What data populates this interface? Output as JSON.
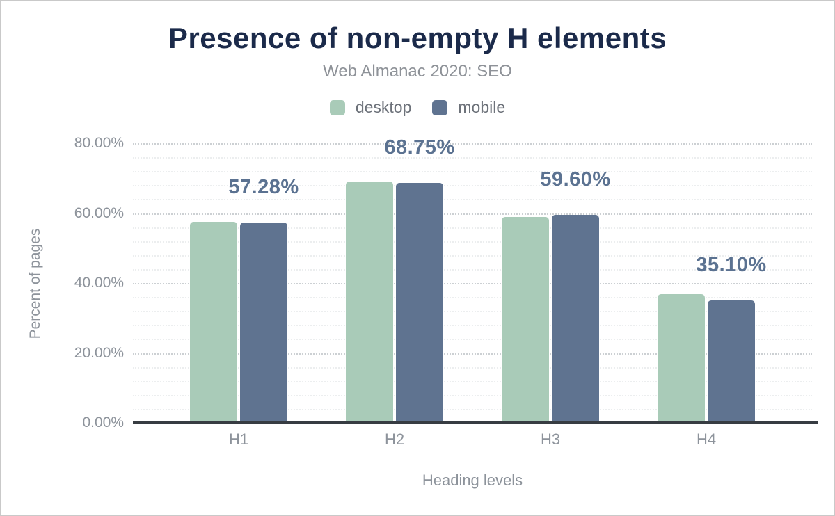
{
  "chart_data": {
    "type": "bar",
    "title": "Presence of non-empty H elements",
    "subtitle": "Web Almanac 2020: SEO",
    "categories": [
      "H1",
      "H2",
      "H3",
      "H4"
    ],
    "series": [
      {
        "name": "desktop",
        "color": "#a9cbb8",
        "values": [
          57.5,
          69.0,
          59.0,
          36.8
        ]
      },
      {
        "name": "mobile",
        "color": "#5f7390",
        "values": [
          57.28,
          68.75,
          59.6,
          35.1
        ]
      }
    ],
    "bar_labels": [
      "57.28%",
      "68.75%",
      "59.60%",
      "35.10%"
    ],
    "bar_labels_series": "mobile",
    "xlabel": "Heading levels",
    "ylabel": "Percent of pages",
    "ylim": [
      0,
      80
    ],
    "ytick_values": [
      0,
      20,
      40,
      60,
      80
    ],
    "ytick_labels": [
      "0.00%",
      "20.00%",
      "40.00%",
      "60.00%",
      "80.00%"
    ],
    "minor_grid_step": 4,
    "major_grid_step": 20,
    "grid": true,
    "legend_position": "top"
  },
  "colors": {
    "title": "#1b2a4a",
    "subtitle": "#8e9298",
    "axis_text": "#8d939b",
    "value_label": "#5b7291",
    "axis_line": "#373c42",
    "major_grid": "#ccd0d3",
    "minor_grid": "#eceeef",
    "background": "#ffffff"
  }
}
